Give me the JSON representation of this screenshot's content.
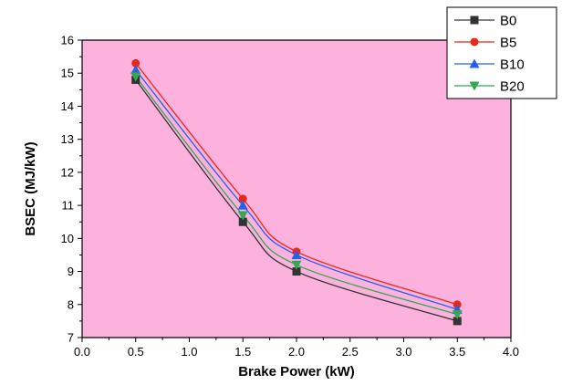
{
  "chart_data": {
    "type": "line",
    "xlabel": "Brake Power (kW)",
    "ylabel": "BSEC (MJ/kW)",
    "xlim": [
      0.0,
      4.0
    ],
    "ylim": [
      7,
      16
    ],
    "x_ticks": [
      "0.0",
      "0.5",
      "1.0",
      "1.5",
      "2.0",
      "2.5",
      "3.0",
      "3.5",
      "4.0"
    ],
    "y_ticks": [
      "7",
      "8",
      "9",
      "10",
      "11",
      "12",
      "13",
      "14",
      "15",
      "16"
    ],
    "x": [
      0.5,
      1.5,
      2.0,
      3.5
    ],
    "series": [
      {
        "name": "B0",
        "values": [
          14.8,
          10.5,
          9.0,
          7.5
        ],
        "color": "#333333",
        "marker": "square"
      },
      {
        "name": "B5",
        "values": [
          15.3,
          11.2,
          9.6,
          8.0
        ],
        "color": "#e8271b",
        "marker": "circle"
      },
      {
        "name": "B10",
        "values": [
          15.1,
          11.0,
          9.5,
          7.85
        ],
        "color": "#2561e8",
        "marker": "triangle-up"
      },
      {
        "name": "B20",
        "values": [
          14.9,
          10.7,
          9.2,
          7.7
        ],
        "color": "#32a852",
        "marker": "triangle-down"
      }
    ],
    "background_color": "#fdb1dd",
    "grid": false,
    "legend_position": "top-right"
  }
}
